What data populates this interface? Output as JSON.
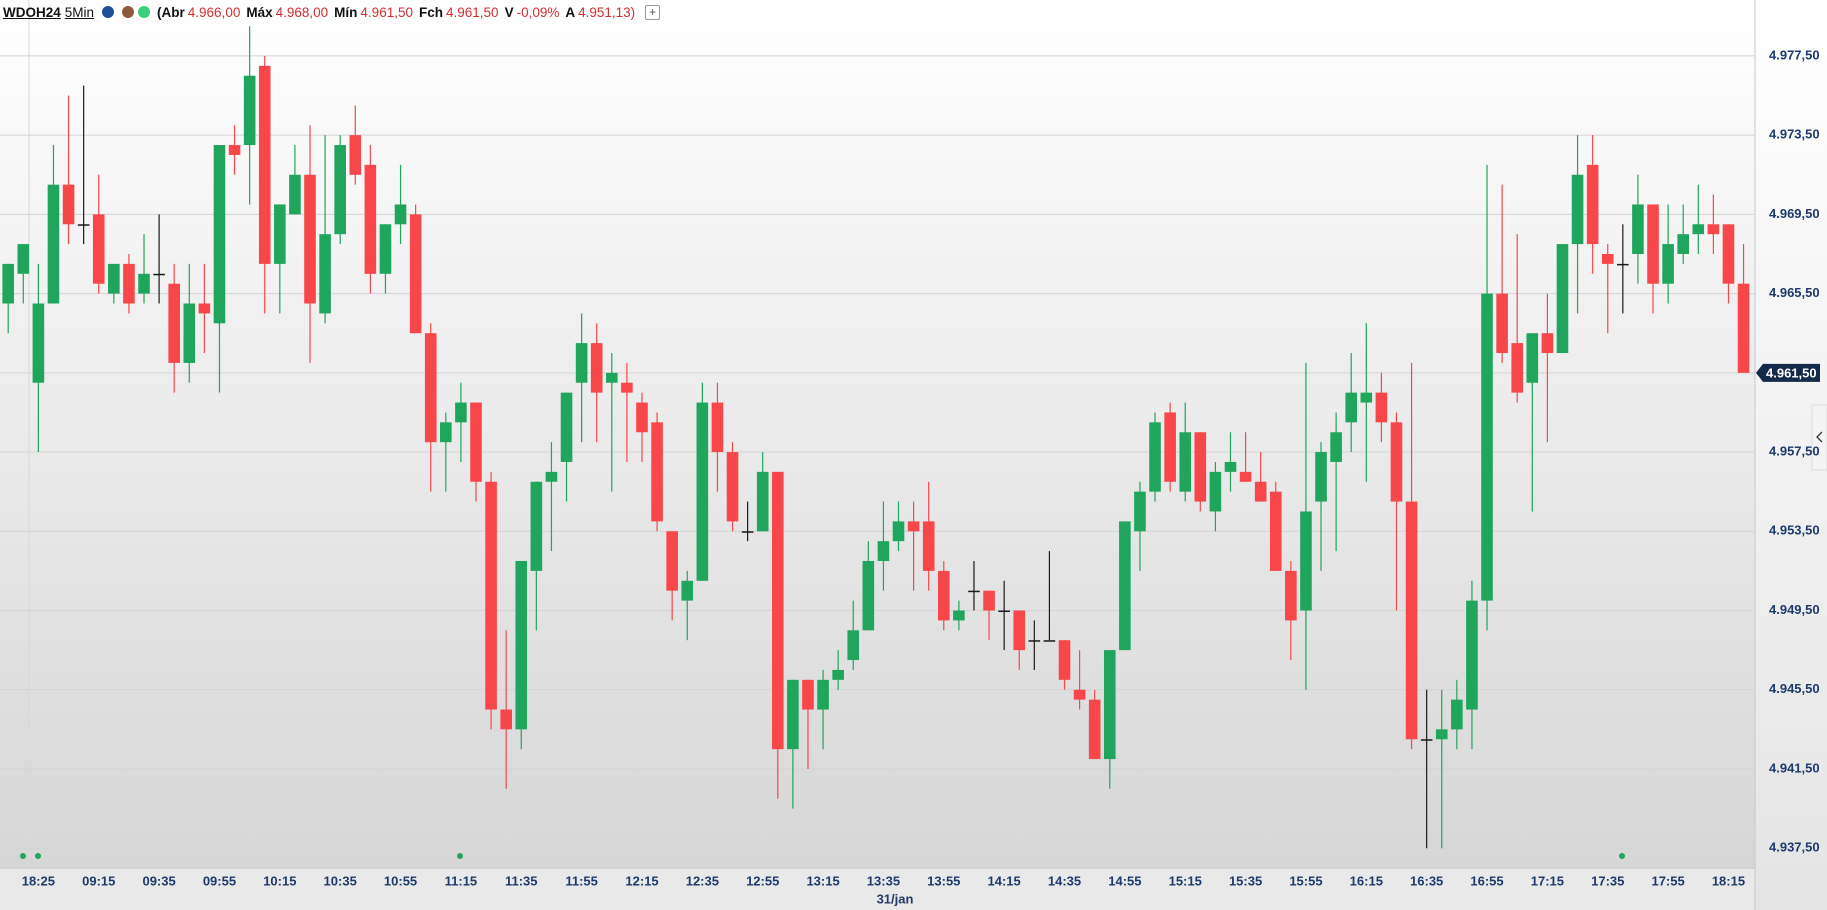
{
  "header": {
    "symbol": "WDOH24",
    "interval": "5Min",
    "fields": [
      {
        "label": "(Abr",
        "value": "4.966,00"
      },
      {
        "label": "Máx",
        "value": "4.968,00"
      },
      {
        "label": "Mín",
        "value": "4.961,50"
      },
      {
        "label": "Fch",
        "value": "4.961,50"
      },
      {
        "label": "V",
        "value": "-0,09%"
      },
      {
        "label": "A",
        "value": "4.951,13)"
      }
    ],
    "add_button": "+"
  },
  "chart_data": {
    "type": "candlestick",
    "categories": [
      null,
      null,
      "18:25",
      null,
      null,
      null,
      "09:15",
      null,
      null,
      null,
      "09:35",
      null,
      null,
      null,
      "09:55",
      null,
      null,
      null,
      "10:15",
      null,
      null,
      null,
      "10:35",
      null,
      null,
      null,
      "10:55",
      null,
      null,
      null,
      "11:15",
      null,
      null,
      null,
      "11:35",
      null,
      null,
      null,
      "11:55",
      null,
      null,
      null,
      "12:15",
      null,
      null,
      null,
      "12:35",
      null,
      null,
      null,
      "12:55",
      null,
      null,
      null,
      "13:15",
      null,
      null,
      null,
      "13:35",
      null,
      null,
      null,
      "13:55",
      null,
      null,
      null,
      "14:15",
      null,
      null,
      null,
      "14:35",
      null,
      null,
      null,
      "14:55",
      null,
      null,
      null,
      "15:15",
      null,
      null,
      null,
      "15:35",
      null,
      null,
      null,
      "15:55",
      null,
      null,
      null,
      "16:15",
      null,
      null,
      null,
      "16:35",
      null,
      null,
      null,
      "16:55",
      null,
      null,
      null,
      "17:15",
      null,
      null,
      null,
      "17:35",
      null,
      null,
      null,
      "17:55",
      null,
      null,
      null,
      "18:15",
      null
    ],
    "date_label": "31/jan",
    "open": [
      4965,
      4966.5,
      4961,
      4965,
      4971,
      4969,
      4969.5,
      4965.5,
      4967,
      4965.5,
      4966.5,
      4966,
      4962,
      4965,
      4964,
      4973,
      4973,
      4977,
      4967,
      4969.5,
      4971.5,
      4964.5,
      4968.5,
      4973.5,
      4972,
      4966.5,
      4969,
      4969.5,
      4963.5,
      4958,
      4959,
      4960,
      4956,
      4944.5,
      4943.5,
      4951.5,
      4956,
      4957,
      4961,
      4963,
      4961,
      4961,
      4960,
      4959,
      4953.5,
      4950,
      4951,
      4960,
      4957.5,
      4953.5,
      4953.5,
      4956.5,
      4942.5,
      4946,
      4944.5,
      4946,
      4947,
      4948.5,
      4952,
      4953,
      4954,
      4954,
      4951.5,
      4949,
      4950.5,
      4950.5,
      4949.5,
      4949.5,
      4948,
      4948,
      4948,
      4945.5,
      4945,
      4942,
      4947.5,
      4953.5,
      4955.5,
      4959.5,
      4955.5,
      4958.5,
      4954.5,
      4956.5,
      4956.5,
      4956,
      4955.5,
      4951.5,
      4949.5,
      4955,
      4957,
      4959,
      4960,
      4960.5,
      4959,
      4955,
      4943,
      4943,
      4943.5,
      4944.5,
      4950,
      4965.5,
      4963,
      4961,
      4963.5,
      4962.5,
      4968,
      4972,
      4967.5,
      4967,
      4967.5,
      4970,
      4966,
      4967.5,
      4968.5,
      4969,
      4969,
      4966
    ],
    "high": [
      4967,
      4968,
      4967,
      4973,
      4975.5,
      4976,
      4971.5,
      4967,
      4967.5,
      4968.5,
      4969.5,
      4967,
      4967,
      4967,
      4973,
      4974,
      4979,
      4977.5,
      4970,
      4973,
      4974,
      4973.5,
      4973.5,
      4975,
      4973,
      4969,
      4972,
      4970,
      4964,
      4959.5,
      4961,
      4960,
      4956.5,
      4948.5,
      4952,
      4956,
      4958,
      4960.5,
      4964.5,
      4964,
      4962.5,
      4962,
      4960.5,
      4959.5,
      4953.5,
      4951.5,
      4961,
      4961,
      4958,
      4955,
      4957.5,
      4956.5,
      4946,
      4946,
      4946.5,
      4947.5,
      4950,
      4953,
      4955,
      4955,
      4955,
      4956,
      4952,
      4950,
      4952,
      4950.5,
      4951,
      4949.5,
      4949,
      4952.5,
      4948,
      4947.5,
      4945.5,
      4947.5,
      4954,
      4956,
      4959.5,
      4960,
      4960,
      4958.5,
      4957,
      4958.5,
      4958.5,
      4957.5,
      4956,
      4952,
      4962,
      4958,
      4959.5,
      4962.5,
      4964,
      4961.5,
      4959.5,
      4962,
      4945.5,
      4945.5,
      4946,
      4951,
      4972,
      4971,
      4968.5,
      4963.5,
      4965.5,
      4968,
      4973.5,
      4973.5,
      4968,
      4969,
      4971.5,
      4970,
      4970,
      4970,
      4971,
      4970.5,
      4969,
      4968
    ],
    "low": [
      4963.5,
      4965,
      4957.5,
      4965,
      4968,
      4968,
      4965.5,
      4965,
      4964.5,
      4965,
      4965,
      4960.5,
      4961,
      4962.5,
      4960.5,
      4971.5,
      4970,
      4964.5,
      4964.5,
      4969.5,
      4962,
      4964,
      4968,
      4971,
      4965.5,
      4965.5,
      4968,
      4963.5,
      4955.5,
      4955.5,
      4957,
      4955,
      4943.5,
      4940.5,
      4942.5,
      4948.5,
      4952.5,
      4955,
      4958,
      4958,
      4955.5,
      4957,
      4957,
      4953.5,
      4949,
      4948,
      4951,
      4955.5,
      4953.5,
      4953,
      4953.5,
      4940,
      4939.5,
      4941.5,
      4942.5,
      4945.5,
      4946.5,
      4948.5,
      4950.5,
      4952.5,
      4950.5,
      4950.5,
      4948.5,
      4948.5,
      4949.5,
      4948,
      4947.5,
      4946.5,
      4946.5,
      4948,
      4945.5,
      4944.5,
      4942,
      4940.5,
      4947.5,
      4951.5,
      4955,
      4955.5,
      4955,
      4954.5,
      4953.5,
      4955.5,
      4956,
      4955,
      4951.5,
      4947,
      4945.5,
      4951.5,
      4952.5,
      4957.5,
      4956,
      4958,
      4949.5,
      4942.5,
      4937.5,
      4937.5,
      4942.5,
      4942.5,
      4948.5,
      4962,
      4960,
      4954.5,
      4958,
      4962.5,
      4964.5,
      4966.5,
      4963.5,
      4964.5,
      4966,
      4964.5,
      4965,
      4967,
      4967.5,
      4967.5,
      4965,
      4961.5
    ],
    "close": [
      4967,
      4968,
      4965,
      4971,
      4969,
      4969,
      4966,
      4967,
      4965,
      4966.5,
      4966.5,
      4962,
      4965,
      4964.5,
      4973,
      4972.5,
      4976.5,
      4967,
      4970,
      4971.5,
      4965,
      4968.5,
      4973,
      4971.5,
      4966.5,
      4969,
      4970,
      4963.5,
      4958,
      4959,
      4960,
      4956,
      4944.5,
      4943.5,
      4952,
      4956,
      4956.5,
      4960.5,
      4963,
      4960.5,
      4961.5,
      4960.5,
      4958.5,
      4954,
      4950.5,
      4951,
      4960,
      4957.5,
      4954,
      4953.5,
      4956.5,
      4942.5,
      4946,
      4944.5,
      4946,
      4946.5,
      4948.5,
      4952,
      4953,
      4954,
      4953.5,
      4951.5,
      4949,
      4949.5,
      4950.5,
      4949.5,
      4949.5,
      4947.5,
      4948,
      4948,
      4946,
      4945,
      4942,
      4947.5,
      4954,
      4955.5,
      4959,
      4956,
      4958.5,
      4955,
      4956.5,
      4957,
      4956,
      4955,
      4951.5,
      4949,
      4954.5,
      4957.5,
      4958.5,
      4960.5,
      4960.5,
      4959,
      4955,
      4943,
      4943,
      4943.5,
      4945,
      4950,
      4965.5,
      4962.5,
      4960.5,
      4963.5,
      4962.5,
      4968,
      4971.5,
      4968,
      4967,
      4967,
      4970,
      4966,
      4968,
      4968.5,
      4969,
      4968.5,
      4966,
      4961.5
    ],
    "up_color": "#1fa55c",
    "down_color": "#f7474a",
    "doji_color": "#1a1a1a",
    "ylim": [
      4936.5,
      4980
    ],
    "yticks": [
      {
        "value": 4937.5,
        "label": "4.937,50"
      },
      {
        "value": 4941.5,
        "label": "4.941,50"
      },
      {
        "value": 4945.5,
        "label": "4.945,50"
      },
      {
        "value": 4949.5,
        "label": "4.949,50"
      },
      {
        "value": 4953.5,
        "label": "4.953,50"
      },
      {
        "value": 4957.5,
        "label": "4.957,50"
      },
      {
        "value": 4961.5,
        "label": "4.961,50"
      },
      {
        "value": 4965.5,
        "label": "4.965,50"
      },
      {
        "value": 4969.5,
        "label": "4.969,50"
      },
      {
        "value": 4973.5,
        "label": "4.973,50"
      },
      {
        "value": 4977.5,
        "label": "4.977,50"
      }
    ],
    "last_price": {
      "value": 4961.5,
      "label": "4.961,50"
    },
    "grid": true
  }
}
